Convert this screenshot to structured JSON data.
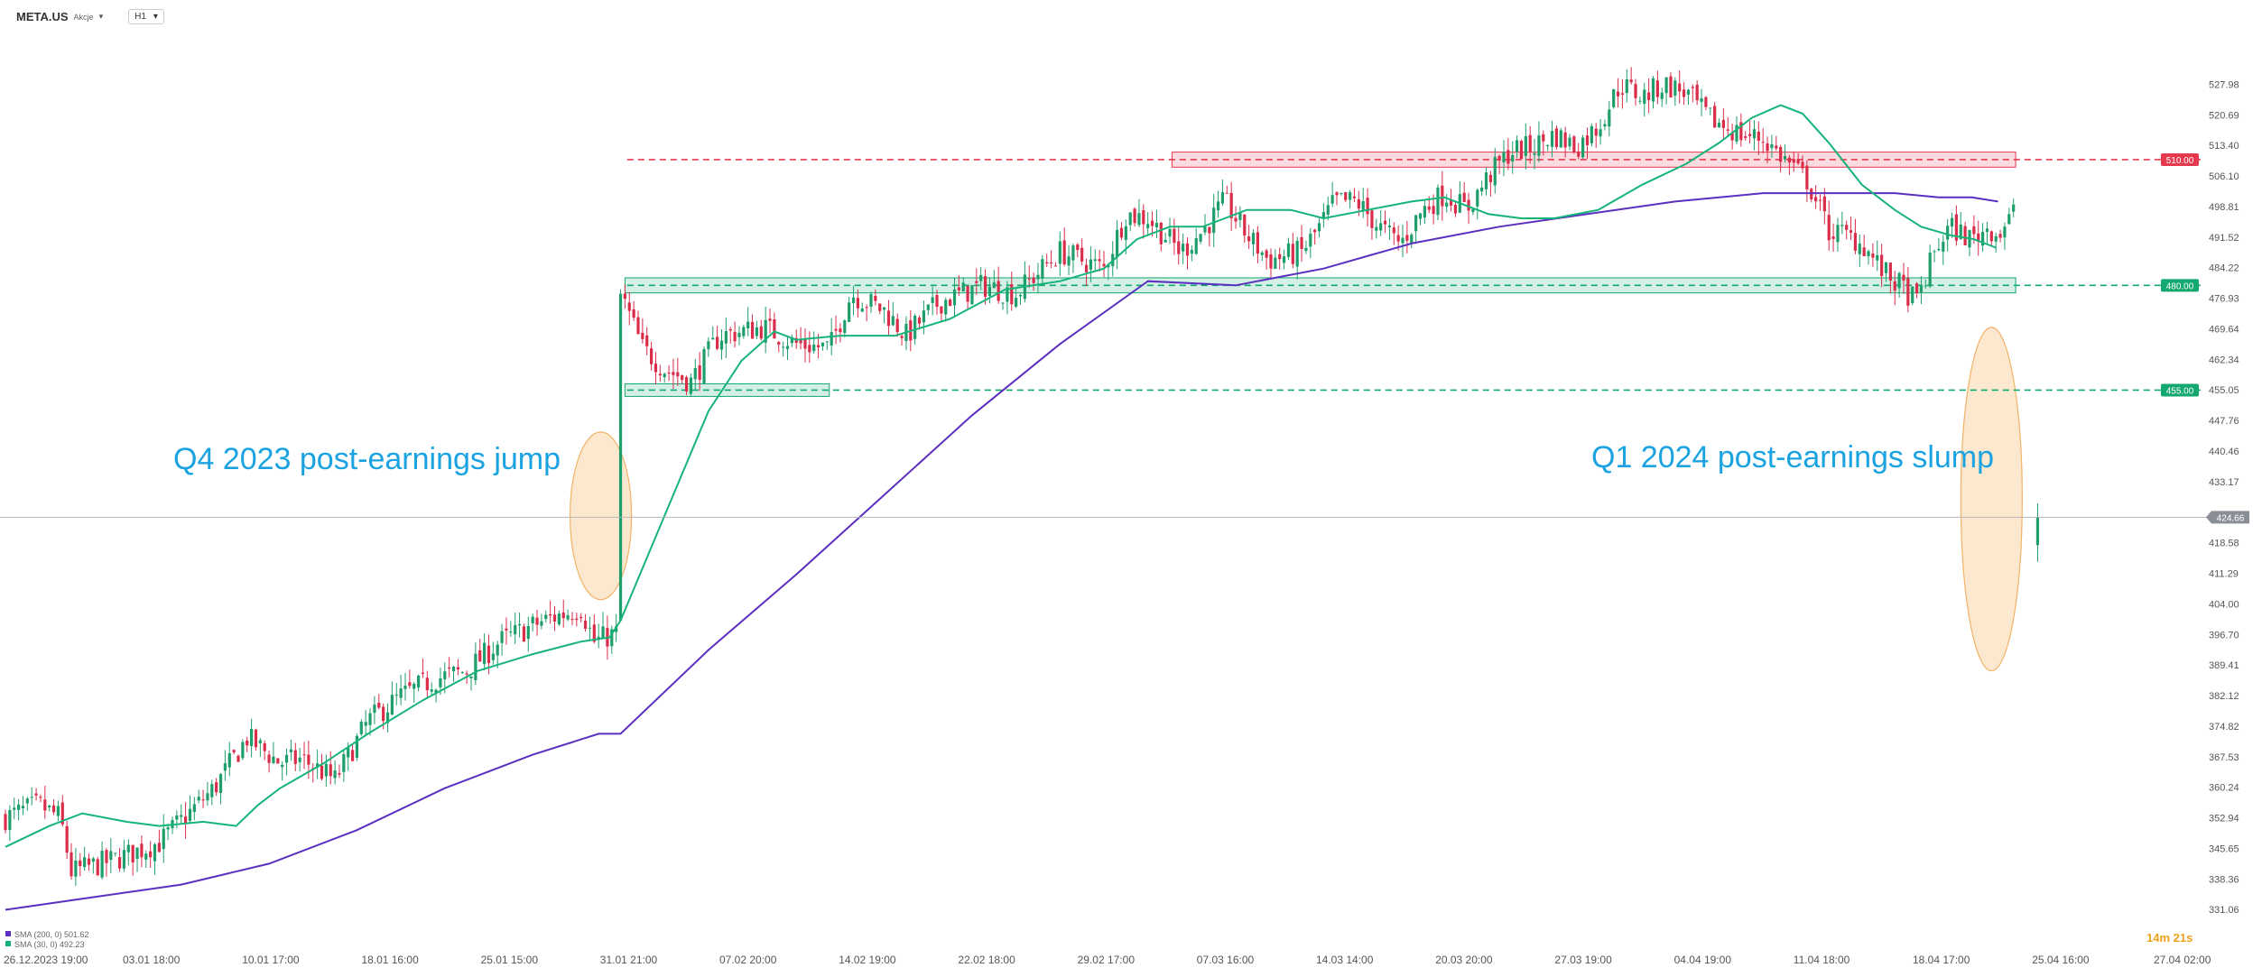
{
  "header": {
    "symbol": "META.US",
    "symbol_sub": "Akcje",
    "timeframe": "H1",
    "dropdown_icon": "caret-down-icon"
  },
  "annotations": {
    "left": "Q4 2023 post-earnings jump",
    "right": "Q1 2024 post-earnings slump"
  },
  "countdown": "14m 21s",
  "indicators": [
    {
      "label": "SMA (200, 0) 501.62",
      "color": "#5b2fc0"
    },
    {
      "label": "SMA (30, 0) 492.23",
      "color": "#16b37a"
    }
  ],
  "colors": {
    "up": "#1e9e6a",
    "down": "#d92d4a",
    "sma30": "#16b37a",
    "sma200": "#5b2fc0",
    "resistance": "#e53950",
    "support": "#13a870",
    "annotation_text": "#1aa3e0",
    "ellipse_fill": "#fbe2c3",
    "ellipse_stroke": "#f1b368",
    "countdown": "#f0a21c"
  },
  "chart_data": {
    "type": "candlestick",
    "y_axis_ticks": [
      527.98,
      520.69,
      513.4,
      506.1,
      498.81,
      491.52,
      484.22,
      476.93,
      469.64,
      462.34,
      455.05,
      447.76,
      440.46,
      433.17,
      418.58,
      411.29,
      404.0,
      396.7,
      389.41,
      382.12,
      374.82,
      367.53,
      360.24,
      352.94,
      345.65,
      338.36,
      331.06
    ],
    "ylim": [
      328.3,
      536.9
    ],
    "x_axis_labels": [
      "26.12.2023 19:00",
      "03.01 18:00",
      "10.01 17:00",
      "18.01 16:00",
      "25.01 15:00",
      "31.01 21:00",
      "07.02 20:00",
      "14.02 19:00",
      "22.02 18:00",
      "29.02 17:00",
      "07.03 16:00",
      "14.03 14:00",
      "20.03 20:00",
      "27.03 19:00",
      "04.04 19:00",
      "11.04 18:00",
      "18.04 17:00",
      "25.04 16:00",
      "27.04 02:00"
    ],
    "x_bars": 1000,
    "levels": [
      {
        "price": 510.0,
        "label": "510.00",
        "kind": "resistance"
      },
      {
        "price": 480.0,
        "label": "480.00",
        "kind": "support"
      },
      {
        "price": 455.0,
        "label": "455.00",
        "kind": "support"
      }
    ],
    "current_price": {
      "value": 424.66,
      "label": "424.66"
    },
    "close_path": [
      [
        0,
        353
      ],
      [
        15,
        356
      ],
      [
        25,
        353
      ],
      [
        30,
        340
      ],
      [
        50,
        343
      ],
      [
        70,
        347
      ],
      [
        95,
        360
      ],
      [
        110,
        372
      ],
      [
        125,
        366
      ],
      [
        135,
        367
      ],
      [
        150,
        362
      ],
      [
        165,
        376
      ],
      [
        180,
        382
      ],
      [
        195,
        386
      ],
      [
        210,
        388
      ],
      [
        225,
        395
      ],
      [
        245,
        400
      ],
      [
        262,
        403
      ],
      [
        268,
        395
      ],
      [
        278,
        397
      ],
      [
        280,
        478
      ],
      [
        290,
        465
      ],
      [
        300,
        460
      ],
      [
        312,
        457
      ],
      [
        325,
        468
      ],
      [
        345,
        470
      ],
      [
        360,
        466
      ],
      [
        375,
        465
      ],
      [
        385,
        478
      ],
      [
        400,
        474
      ],
      [
        410,
        468
      ],
      [
        425,
        476
      ],
      [
        445,
        480
      ],
      [
        460,
        478
      ],
      [
        480,
        488
      ],
      [
        500,
        484
      ],
      [
        510,
        497
      ],
      [
        520,
        496
      ],
      [
        535,
        488
      ],
      [
        545,
        493
      ],
      [
        555,
        500
      ],
      [
        565,
        492
      ],
      [
        575,
        486
      ],
      [
        590,
        488
      ],
      [
        597,
        493
      ],
      [
        605,
        500
      ],
      [
        615,
        500
      ],
      [
        625,
        494
      ],
      [
        635,
        490
      ],
      [
        645,
        498
      ],
      [
        655,
        502
      ],
      [
        665,
        498
      ],
      [
        675,
        506
      ],
      [
        685,
        512
      ],
      [
        695,
        513
      ],
      [
        705,
        516
      ],
      [
        715,
        513
      ],
      [
        725,
        518
      ],
      [
        735,
        528
      ],
      [
        745,
        525
      ],
      [
        755,
        528
      ],
      [
        765,
        526
      ],
      [
        775,
        520
      ],
      [
        790,
        516
      ],
      [
        800,
        515
      ],
      [
        810,
        510
      ],
      [
        820,
        505
      ],
      [
        826,
        498
      ],
      [
        830,
        493
      ],
      [
        838,
        492
      ],
      [
        845,
        490
      ],
      [
        855,
        483
      ],
      [
        862,
        480
      ],
      [
        870,
        476
      ],
      [
        878,
        488
      ],
      [
        885,
        494
      ],
      [
        895,
        491
      ],
      [
        903,
        494
      ],
      [
        907,
        492
      ],
      [
        915,
        498
      ]
    ],
    "sma30_path": [
      [
        0,
        346
      ],
      [
        20,
        351
      ],
      [
        35,
        354
      ],
      [
        55,
        352
      ],
      [
        70,
        351
      ],
      [
        90,
        352
      ],
      [
        105,
        351
      ],
      [
        115,
        356
      ],
      [
        125,
        360
      ],
      [
        145,
        366
      ],
      [
        165,
        373
      ],
      [
        190,
        381
      ],
      [
        215,
        388
      ],
      [
        240,
        392
      ],
      [
        262,
        395
      ],
      [
        275,
        396
      ],
      [
        280,
        400
      ],
      [
        300,
        425
      ],
      [
        320,
        450
      ],
      [
        335,
        462
      ],
      [
        350,
        469
      ],
      [
        360,
        467
      ],
      [
        380,
        468
      ],
      [
        405,
        468
      ],
      [
        430,
        472
      ],
      [
        455,
        479
      ],
      [
        480,
        481
      ],
      [
        500,
        484
      ],
      [
        515,
        491
      ],
      [
        530,
        494
      ],
      [
        545,
        494
      ],
      [
        555,
        496
      ],
      [
        565,
        498
      ],
      [
        585,
        498
      ],
      [
        600,
        496
      ],
      [
        620,
        498
      ],
      [
        640,
        500
      ],
      [
        655,
        501
      ],
      [
        675,
        497
      ],
      [
        690,
        496
      ],
      [
        705,
        496
      ],
      [
        725,
        498
      ],
      [
        745,
        504
      ],
      [
        765,
        509
      ],
      [
        780,
        514
      ],
      [
        795,
        520
      ],
      [
        808,
        523
      ],
      [
        818,
        521
      ],
      [
        830,
        514
      ],
      [
        845,
        504
      ],
      [
        860,
        498
      ],
      [
        872,
        494
      ],
      [
        885,
        492
      ],
      [
        896,
        491
      ],
      [
        906,
        489
      ]
    ],
    "sma200_path": [
      [
        0,
        331
      ],
      [
        40,
        334
      ],
      [
        80,
        337
      ],
      [
        120,
        342
      ],
      [
        160,
        350
      ],
      [
        200,
        360
      ],
      [
        240,
        368
      ],
      [
        270,
        373
      ],
      [
        280,
        373
      ],
      [
        320,
        393
      ],
      [
        360,
        411
      ],
      [
        400,
        430
      ],
      [
        440,
        449
      ],
      [
        480,
        466
      ],
      [
        520,
        481
      ],
      [
        560,
        480
      ],
      [
        600,
        484
      ],
      [
        640,
        490
      ],
      [
        680,
        494
      ],
      [
        720,
        497
      ],
      [
        760,
        500
      ],
      [
        800,
        502
      ],
      [
        830,
        502
      ],
      [
        860,
        502
      ],
      [
        880,
        501
      ],
      [
        895,
        501
      ],
      [
        907,
        500
      ]
    ],
    "zones": [
      {
        "from": 282,
        "to": 375,
        "low": 453.5,
        "high": 456.5,
        "kind": "support"
      },
      {
        "from": 282,
        "to": 915,
        "low": 478.2,
        "high": 481.8,
        "kind": "support"
      },
      {
        "from": 531,
        "to": 915,
        "low": 508.2,
        "high": 511.8,
        "kind": "resistance"
      }
    ]
  }
}
